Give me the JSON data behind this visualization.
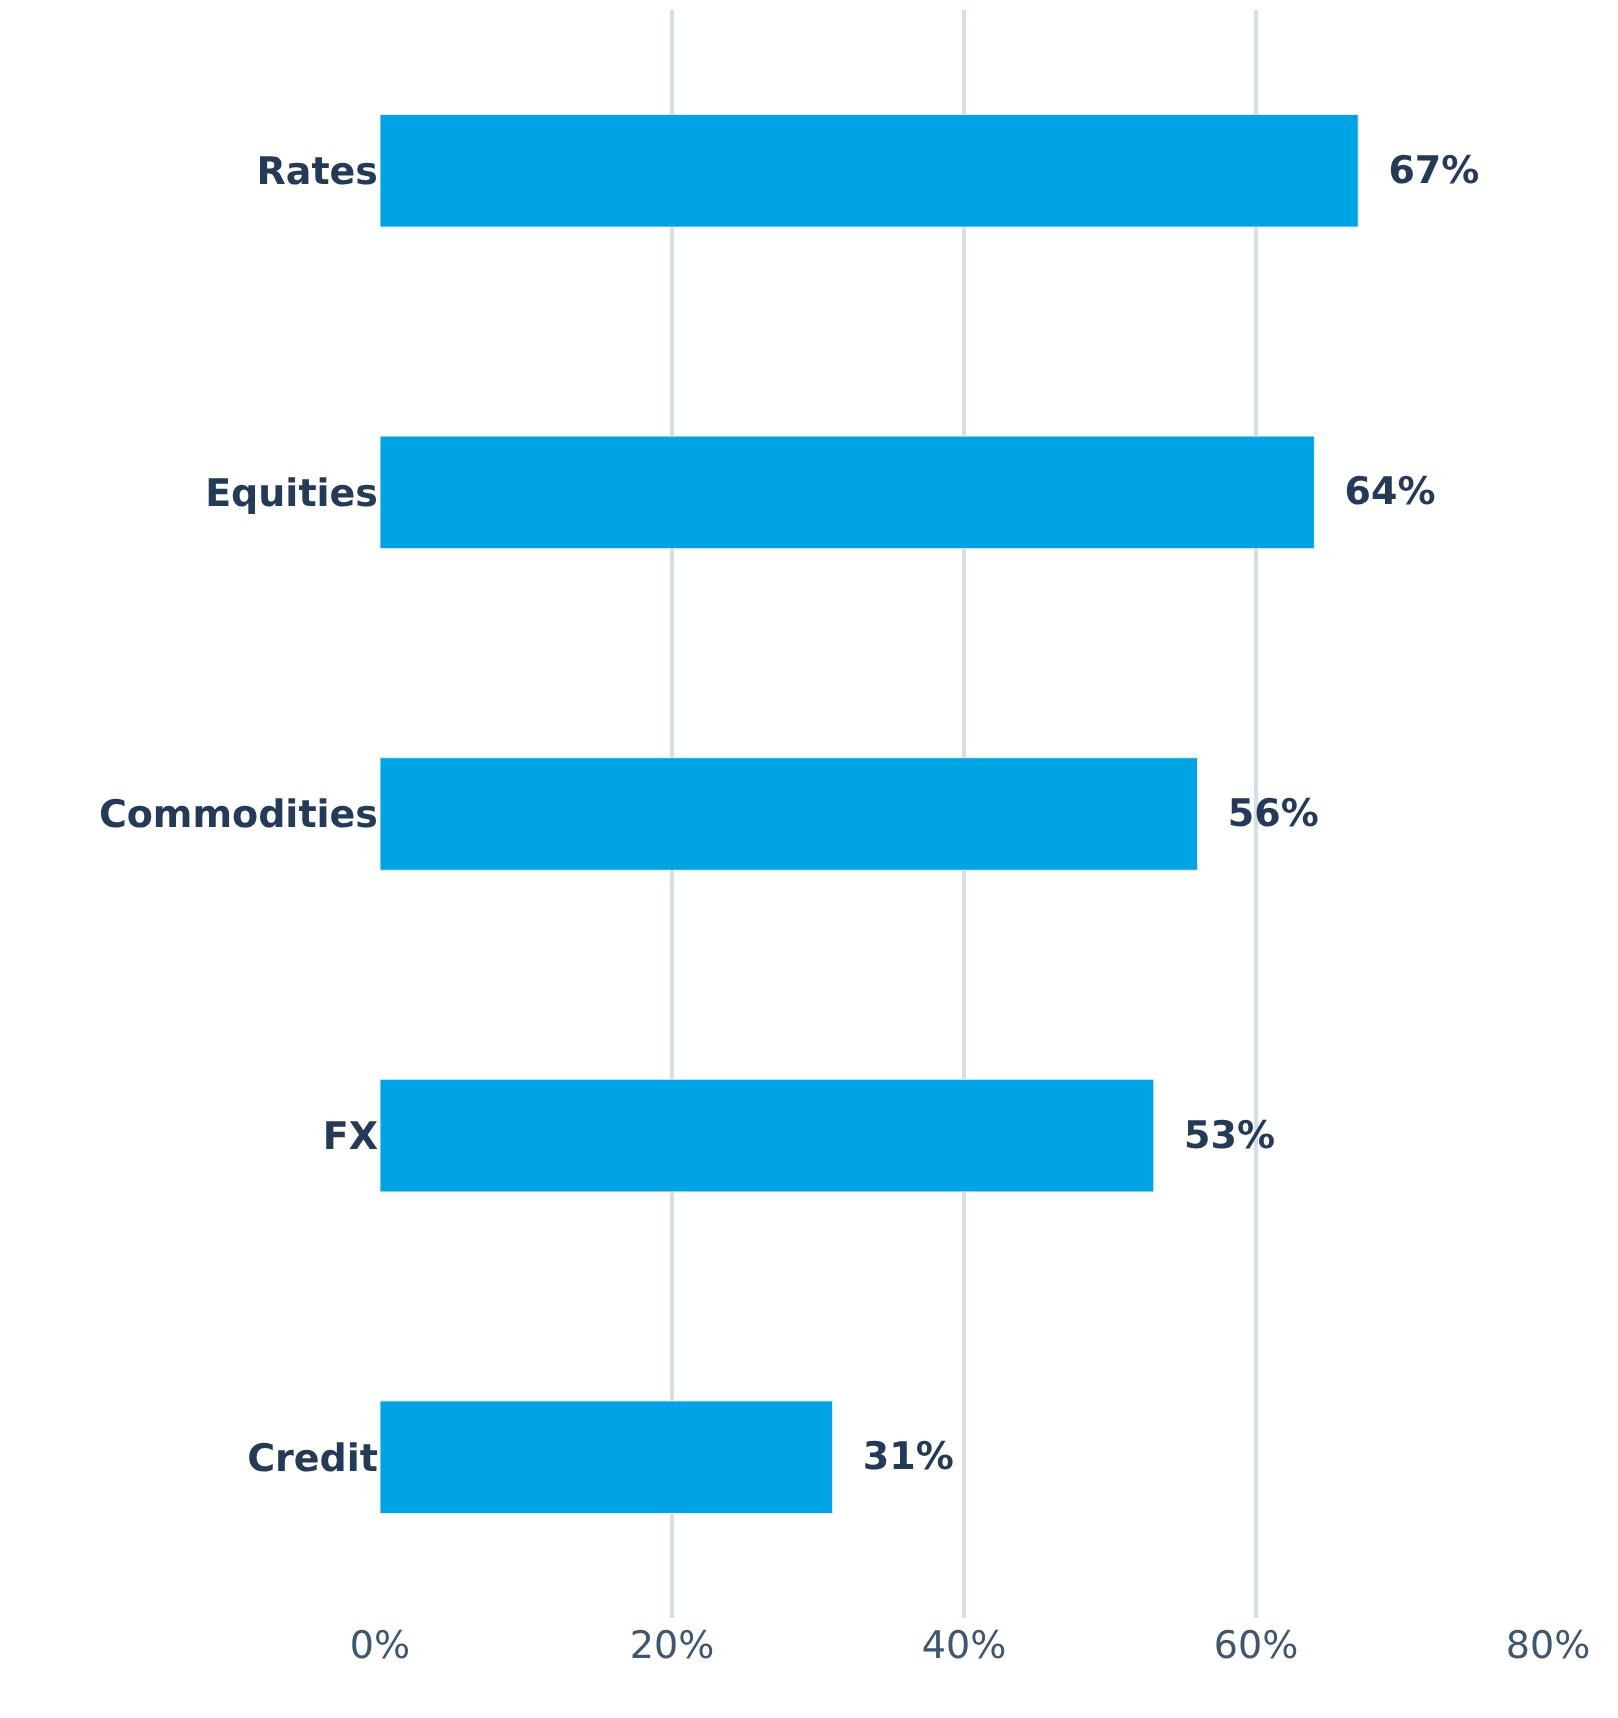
{
  "chart_data": {
    "type": "bar",
    "orientation": "horizontal",
    "categories": [
      "Rates",
      "Equities",
      "Commodities",
      "FX",
      "Credit"
    ],
    "values": [
      67,
      64,
      56,
      53,
      31
    ],
    "value_labels": [
      "67%",
      "64%",
      "56%",
      "53%",
      "31%"
    ],
    "color": "#00a3e4",
    "xlim": [
      0,
      80
    ],
    "xticks": [
      {
        "value": 0,
        "label": "0%"
      },
      {
        "value": 20,
        "label": "20%"
      },
      {
        "value": 40,
        "label": "40%"
      },
      {
        "value": 60,
        "label": "60%"
      },
      {
        "value": 80,
        "label": "80%"
      }
    ],
    "grid": "x"
  }
}
